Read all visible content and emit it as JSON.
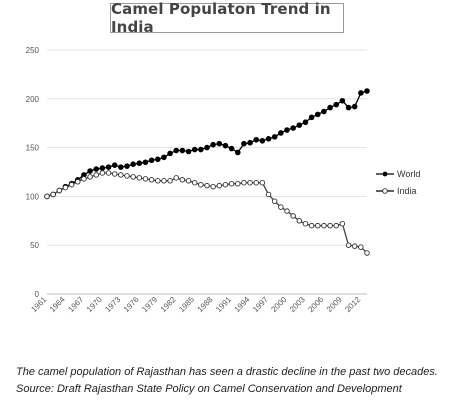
{
  "chart_data": {
    "type": "line",
    "title": "Camel Populaton Trend in India",
    "xlabel": "",
    "ylabel": "",
    "ylim": [
      0,
      250
    ],
    "yticks": [
      0,
      50,
      100,
      150,
      200,
      250
    ],
    "xticks": [
      "1961",
      "1964",
      "1967",
      "1970",
      "1973",
      "1976",
      "1979",
      "1982",
      "1985",
      "1988",
      "1991",
      "1994",
      "1997",
      "2000",
      "2003",
      "2006",
      "2009",
      "2012"
    ],
    "x": [
      1961,
      1962,
      1963,
      1964,
      1965,
      1966,
      1967,
      1968,
      1969,
      1970,
      1971,
      1972,
      1973,
      1974,
      1975,
      1976,
      1977,
      1978,
      1979,
      1980,
      1981,
      1982,
      1983,
      1984,
      1985,
      1986,
      1987,
      1988,
      1989,
      1990,
      1991,
      1992,
      1993,
      1994,
      1995,
      1996,
      1997,
      1998,
      1999,
      2000,
      2001,
      2002,
      2003,
      2004,
      2005,
      2006,
      2007,
      2008,
      2009,
      2010,
      2011,
      2012,
      2013
    ],
    "grid": "horizontal",
    "legend_position": "right",
    "series": [
      {
        "name": "World",
        "marker": "filled-circle",
        "values": [
          100,
          102,
          106,
          110,
          113,
          117,
          122,
          126,
          128,
          129,
          130,
          132,
          130,
          131,
          133,
          134,
          135,
          137,
          138,
          140,
          144,
          147,
          147,
          146,
          148,
          148,
          150,
          153,
          154,
          152,
          149,
          145,
          154,
          155,
          158,
          157,
          159,
          161,
          165,
          168,
          170,
          173,
          176,
          181,
          184,
          187,
          191,
          194,
          198,
          191,
          192,
          206,
          208
        ]
      },
      {
        "name": "India",
        "marker": "open-circle",
        "values": [
          100,
          102,
          106,
          109,
          112,
          115,
          118,
          120,
          122,
          124,
          124,
          123,
          122,
          121,
          120,
          119,
          118,
          117,
          116,
          116,
          116,
          119,
          117,
          116,
          114,
          112,
          111,
          110,
          111,
          112,
          113,
          113,
          114,
          114,
          114,
          114,
          102,
          95,
          89,
          85,
          80,
          75,
          72,
          70,
          70,
          70,
          70,
          70,
          72,
          50,
          49,
          48,
          42
        ]
      }
    ]
  },
  "caption": {
    "line1": "The camel population of Rajasthan has seen a drastic decline in the past two decades.",
    "line2": "Source: Draft Rajasthan State Policy on Camel Conservation and Development"
  }
}
